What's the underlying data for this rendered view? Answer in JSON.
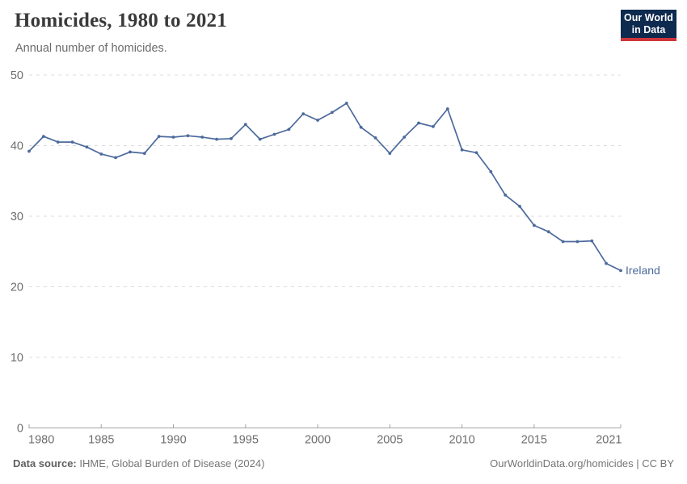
{
  "header": {
    "title": "Homicides, 1980 to 2021",
    "subtitle": "Annual number of homicides.",
    "logo": {
      "line1": "Our World",
      "line2": "in Data"
    }
  },
  "chart_data": {
    "type": "line",
    "title": "Homicides, 1980 to 2021",
    "subtitle": "Annual number of homicides.",
    "xlabel": "",
    "ylabel": "",
    "xlim": [
      1980,
      2021
    ],
    "ylim": [
      0,
      50
    ],
    "x_ticks": [
      1980,
      1985,
      1990,
      1995,
      2000,
      2005,
      2010,
      2015,
      2021
    ],
    "y_ticks": [
      0,
      10,
      20,
      30,
      40,
      50
    ],
    "grid": "horizontal-dashed",
    "legend_position": "end-of-line-label",
    "series": [
      {
        "name": "Ireland",
        "color": "#4C6A9C",
        "x": [
          1980,
          1981,
          1982,
          1983,
          1984,
          1985,
          1986,
          1987,
          1988,
          1989,
          1990,
          1991,
          1992,
          1993,
          1994,
          1995,
          1996,
          1997,
          1998,
          1999,
          2000,
          2001,
          2002,
          2003,
          2004,
          2005,
          2006,
          2007,
          2008,
          2009,
          2010,
          2011,
          2012,
          2013,
          2014,
          2015,
          2016,
          2017,
          2018,
          2019,
          2020,
          2021
        ],
        "values": [
          39.2,
          41.3,
          40.5,
          40.5,
          39.8,
          38.8,
          38.3,
          39.1,
          38.9,
          41.3,
          41.2,
          41.4,
          41.2,
          40.9,
          41.0,
          43.0,
          40.9,
          41.6,
          42.3,
          44.5,
          43.6,
          44.7,
          46.0,
          42.6,
          41.1,
          38.9,
          41.2,
          43.2,
          42.7,
          45.2,
          39.4,
          39.0,
          36.3,
          33.0,
          31.4,
          28.7,
          27.8,
          26.4,
          26.4,
          26.5,
          23.3,
          22.3
        ]
      }
    ]
  },
  "footer": {
    "source_label": "Data source:",
    "source_text": " IHME, Global Burden of Disease (2024)",
    "rights": "OurWorldinData.org/homicides | CC BY"
  },
  "colors": {
    "line": "#4C6A9C",
    "grid": "#dcdcdc",
    "axis": "#a3a3a3",
    "tick_label": "#6d6d6d",
    "title": "#3a3a3a",
    "subtitle": "#6b6b6b",
    "footer": "#757575",
    "logo_bg": "#0e2a4e",
    "logo_accent": "#cf353c"
  }
}
